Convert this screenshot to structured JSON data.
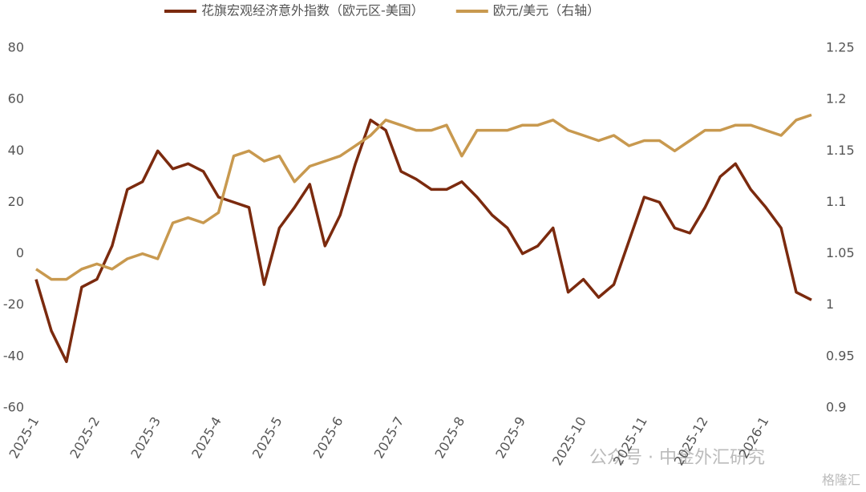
{
  "chart_data": {
    "type": "line",
    "categories": [
      "2025-1",
      null,
      null,
      null,
      "2025-2",
      null,
      null,
      null,
      "2025-3",
      null,
      null,
      null,
      "2025-4",
      null,
      null,
      null,
      "2025-5",
      null,
      null,
      null,
      "2025-6",
      null,
      null,
      null,
      "2025-7",
      null,
      null,
      null,
      "2025-8",
      null,
      null,
      null,
      "2025-9",
      null,
      null,
      null,
      "2025-10",
      null,
      null,
      null,
      "2025-11",
      null,
      null,
      null,
      "2025-12",
      null,
      null,
      null,
      "2026-1",
      null,
      null,
      null
    ],
    "series": [
      {
        "name": "花旗宏观经济意外指数（欧元区-美国）",
        "color": "#7b2a0e",
        "values": [
          -10,
          -30,
          -42,
          -13,
          -10,
          3,
          25,
          28,
          40,
          33,
          35,
          32,
          22,
          20,
          18,
          -12,
          10,
          18,
          27,
          3,
          15,
          35,
          52,
          48,
          32,
          29,
          25,
          25,
          28,
          22,
          15,
          10,
          0,
          3,
          10,
          -15,
          -10,
          -17,
          -12,
          5,
          22,
          20,
          10,
          8,
          18,
          30,
          35,
          25,
          18,
          10,
          -15,
          -18
        ]
      },
      {
        "name": "欧元/美元（右轴）",
        "color": "#c8994f",
        "axis": "y2",
        "values": [
          1.035,
          1.025,
          1.025,
          1.035,
          1.04,
          1.035,
          1.045,
          1.05,
          1.045,
          1.08,
          1.085,
          1.08,
          1.09,
          1.145,
          1.15,
          1.14,
          1.145,
          1.12,
          1.135,
          1.14,
          1.145,
          1.155,
          1.165,
          1.18,
          1.175,
          1.17,
          1.17,
          1.175,
          1.145,
          1.17,
          1.17,
          1.17,
          1.175,
          1.175,
          1.18,
          1.17,
          1.165,
          1.16,
          1.165,
          1.155,
          1.16,
          1.16,
          1.15,
          1.16,
          1.17,
          1.17,
          1.175,
          1.175,
          1.17,
          1.165,
          1.18,
          1.185
        ]
      }
    ],
    "ylim": [
      -60,
      80
    ],
    "yticks": [
      -60,
      -40,
      -20,
      0,
      20,
      40,
      60,
      80
    ],
    "y2lim": [
      0.9,
      1.25
    ],
    "y2ticks": [
      0.9,
      0.95,
      1,
      1.05,
      1.1,
      1.15,
      1.2,
      1.25
    ],
    "legend": "top",
    "annotations": [
      "公众号 · 中金外汇研究",
      "格隆汇"
    ]
  }
}
